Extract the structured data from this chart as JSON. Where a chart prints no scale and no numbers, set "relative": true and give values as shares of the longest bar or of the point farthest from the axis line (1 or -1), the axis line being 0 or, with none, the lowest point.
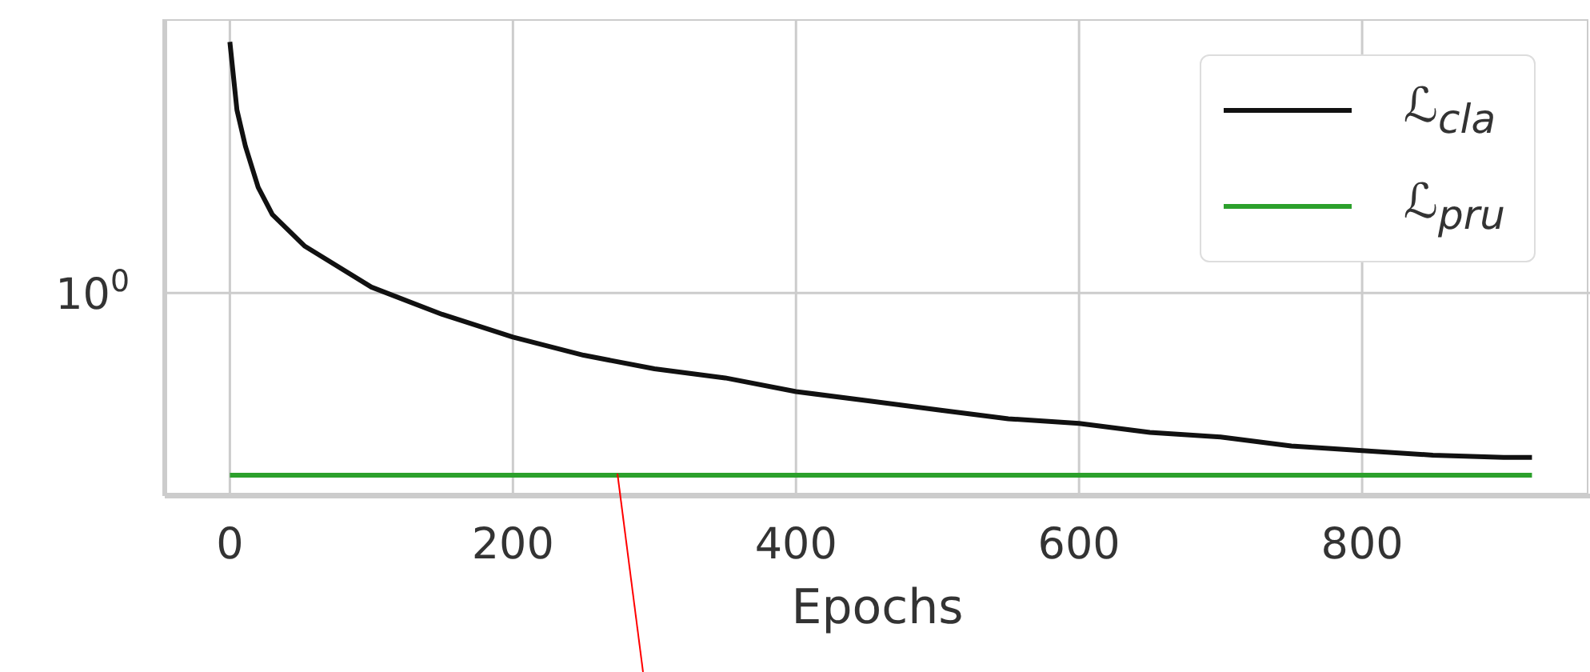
{
  "chart_data": {
    "type": "line",
    "xlabel": "Epochs",
    "relative": true,
    "xlim": [
      -46,
      961
    ],
    "xticks": [
      0,
      200,
      400,
      600,
      800
    ],
    "series": [
      {
        "name": "ℒ$_{cla}$",
        "color": "#111111",
        "x": [
          0,
          5,
          11,
          20,
          30,
          53,
          100,
          150,
          200,
          250,
          300,
          350,
          400,
          450,
          500,
          550,
          600,
          650,
          700,
          750,
          800,
          850,
          900,
          920
        ],
        "values": [
          1.0,
          0.85,
          0.77,
          0.68,
          0.62,
          0.55,
          0.46,
          0.4,
          0.35,
          0.31,
          0.28,
          0.26,
          0.23,
          0.21,
          0.19,
          0.17,
          0.16,
          0.14,
          0.13,
          0.11,
          0.1,
          0.09,
          0.085,
          0.085
        ]
      },
      {
        "name": "ℒ$_{pru}$",
        "color": "#2ca02c",
        "x": [
          0,
          920
        ],
        "values": [
          0.046,
          0.046
        ]
      }
    ],
    "ref_lines": [
      {
        "axis": "y",
        "value": 0.447,
        "label": "10$^{0}$",
        "color": "#cccccc"
      }
    ],
    "grid": "x",
    "legend": "top right",
    "line_style": "solid",
    "marker": "none"
  }
}
